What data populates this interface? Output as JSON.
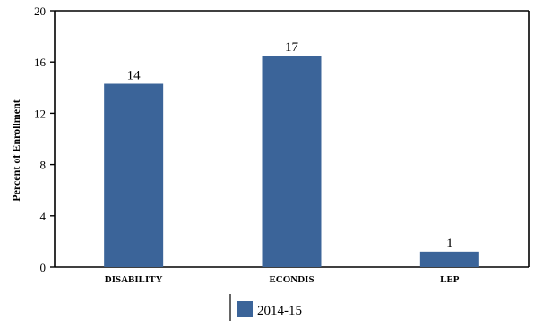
{
  "chart_data": {
    "type": "bar",
    "categories": [
      "DISABILITY",
      "ECONDIS",
      "LEP"
    ],
    "series": [
      {
        "name": "2014-15",
        "values": [
          14.3,
          16.5,
          1.2
        ],
        "data_labels": [
          "14",
          "17",
          "1"
        ],
        "color": "#3b6499"
      }
    ],
    "ylabel": "Percent of Enrollment",
    "xlabel": "",
    "ylim": [
      0,
      20
    ],
    "yticks": [
      0,
      4,
      8,
      12,
      16,
      20
    ],
    "legend_position": "bottom-center",
    "grid": false
  }
}
